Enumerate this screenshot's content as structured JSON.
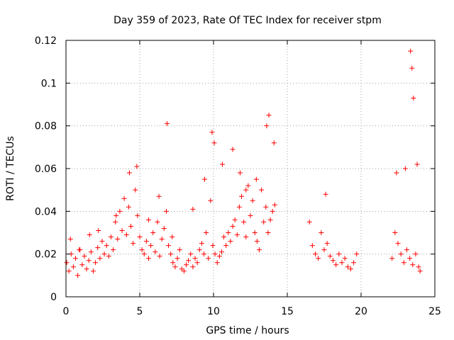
{
  "chart_data": {
    "type": "scatter",
    "title": "Day 359 of 2023, Rate Of TEC Index for receiver stpm",
    "xlabel": "GPS time / hours",
    "ylabel": "ROTI / TECUs",
    "xlim": [
      0,
      25
    ],
    "ylim": [
      0,
      0.12
    ],
    "xticks": [
      "0",
      "5",
      "10",
      "15",
      "20",
      "25"
    ],
    "yticks": [
      "0",
      "0.02",
      "0.04",
      "0.06",
      "0.08",
      "0.1",
      "0.12"
    ],
    "grid": true,
    "marker": "plus",
    "color": "#ff0000",
    "series": [
      {
        "x": [
          0.05,
          0.2,
          0.35,
          0.5,
          0.65,
          0.8,
          0.95,
          1.1,
          1.25,
          1.4,
          1.55,
          1.7,
          1.85,
          2.0,
          2.15,
          2.3,
          2.45,
          2.6,
          2.75,
          2.9,
          3.05,
          3.2,
          3.35,
          3.5,
          3.65,
          3.8,
          3.95,
          4.1,
          4.25,
          4.4,
          4.55,
          4.7,
          4.85,
          5.0,
          5.15,
          5.3,
          5.45,
          5.6,
          5.75,
          5.9,
          6.05,
          6.2,
          6.35,
          6.5,
          6.65,
          6.8,
          6.95,
          7.1,
          7.25,
          7.4,
          7.55,
          7.7,
          7.85,
          8.0,
          8.15,
          8.3,
          8.45,
          8.6,
          8.75,
          8.9,
          9.05,
          9.2,
          9.35,
          9.5,
          9.65,
          9.8,
          9.95,
          10.1,
          10.25,
          10.4,
          10.55,
          10.7,
          10.85,
          11.0,
          11.15,
          11.3,
          11.45,
          11.6,
          11.75,
          11.9,
          12.05,
          12.2,
          12.35,
          12.5,
          12.65,
          12.8,
          12.95,
          13.1,
          13.25,
          13.4,
          13.55,
          13.7,
          13.85,
          14.0,
          14.15,
          16.5,
          16.7,
          16.9,
          17.1,
          17.3,
          17.5,
          17.7,
          17.9,
          18.1,
          18.3,
          18.5,
          18.7,
          18.9,
          19.1,
          19.3,
          19.5,
          19.7,
          22.1,
          22.3,
          22.5,
          22.7,
          22.9,
          23.1,
          23.3,
          23.5,
          23.7,
          23.9,
          24.0,
          0.3,
          0.9,
          1.6,
          2.2,
          3.4,
          4.3,
          4.8,
          5.6,
          6.3,
          6.85,
          7.2,
          8.6,
          9.4,
          9.9,
          10.05,
          10.6,
          11.3,
          11.8,
          12.2,
          12.9,
          13.6,
          13.75,
          14.1,
          17.6,
          23.35,
          23.45,
          23.55,
          23.8,
          22.4,
          23.0
        ],
        "y": [
          0.016,
          0.012,
          0.02,
          0.014,
          0.018,
          0.01,
          0.022,
          0.015,
          0.019,
          0.013,
          0.017,
          0.021,
          0.012,
          0.016,
          0.023,
          0.018,
          0.026,
          0.02,
          0.024,
          0.019,
          0.028,
          0.022,
          0.035,
          0.027,
          0.04,
          0.031,
          0.046,
          0.029,
          0.042,
          0.033,
          0.025,
          0.05,
          0.038,
          0.028,
          0.022,
          0.02,
          0.026,
          0.018,
          0.024,
          0.03,
          0.021,
          0.035,
          0.019,
          0.027,
          0.032,
          0.04,
          0.024,
          0.02,
          0.016,
          0.014,
          0.018,
          0.022,
          0.013,
          0.012,
          0.015,
          0.017,
          0.02,
          0.014,
          0.018,
          0.016,
          0.022,
          0.025,
          0.02,
          0.03,
          0.018,
          0.045,
          0.024,
          0.02,
          0.016,
          0.019,
          0.021,
          0.028,
          0.024,
          0.03,
          0.026,
          0.033,
          0.036,
          0.029,
          0.042,
          0.047,
          0.035,
          0.028,
          0.052,
          0.038,
          0.045,
          0.03,
          0.026,
          0.022,
          0.05,
          0.035,
          0.042,
          0.03,
          0.036,
          0.04,
          0.043,
          0.035,
          0.024,
          0.02,
          0.018,
          0.03,
          0.022,
          0.025,
          0.019,
          0.017,
          0.015,
          0.02,
          0.016,
          0.018,
          0.014,
          0.013,
          0.016,
          0.02,
          0.018,
          0.03,
          0.025,
          0.02,
          0.016,
          0.022,
          0.018,
          0.015,
          0.02,
          0.014,
          0.012,
          0.027,
          0.022,
          0.029,
          0.031,
          0.038,
          0.058,
          0.061,
          0.036,
          0.047,
          0.081,
          0.028,
          0.041,
          0.055,
          0.077,
          0.072,
          0.062,
          0.069,
          0.058,
          0.05,
          0.055,
          0.08,
          0.085,
          0.072,
          0.048,
          0.115,
          0.107,
          0.093,
          0.062,
          0.058,
          0.06
        ]
      }
    ]
  }
}
